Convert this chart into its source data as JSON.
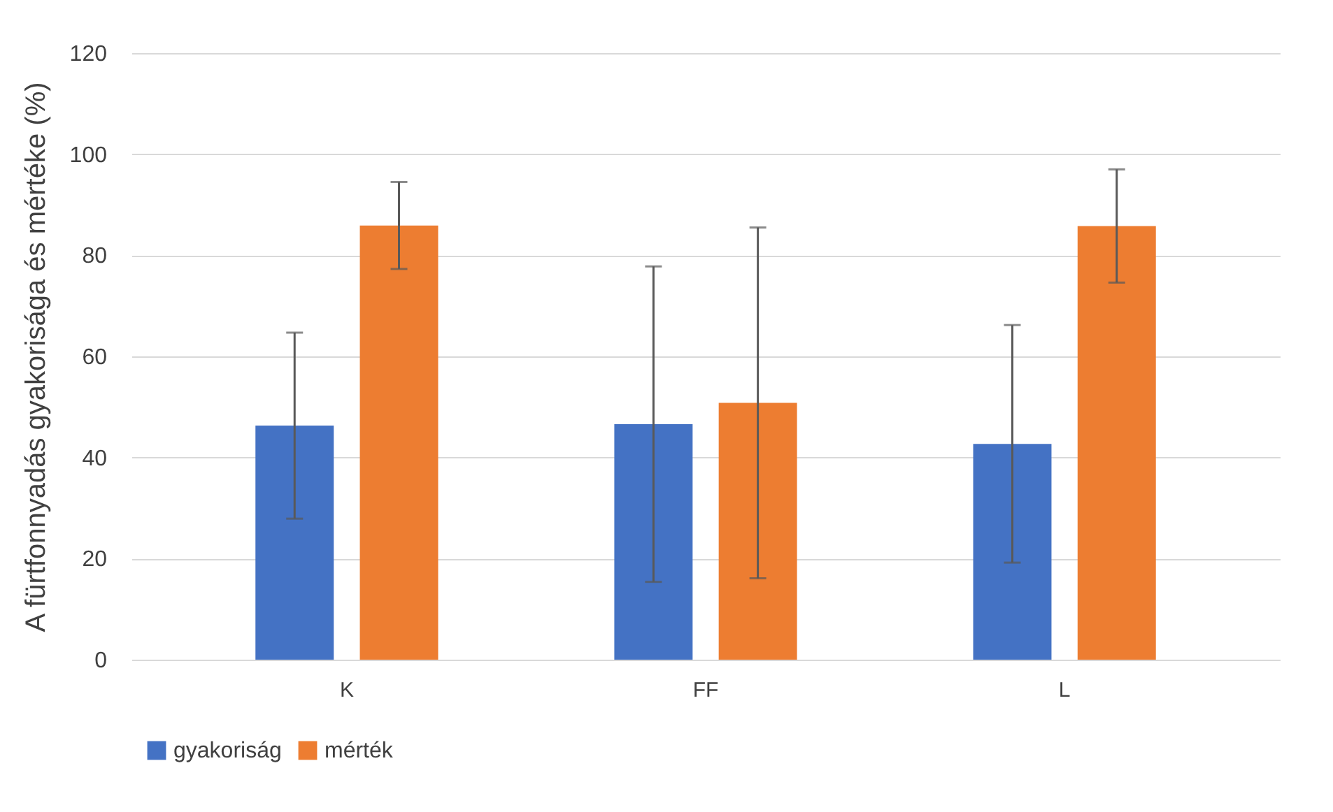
{
  "chart_data": {
    "type": "bar",
    "ylabel": "A fürtfonnyadás gyakorisága és mértéke (%)",
    "categories": [
      "K",
      "FF",
      "L"
    ],
    "series": [
      {
        "name": "gyakoriság",
        "color": "#4472c4",
        "values": [
          46.3,
          46.6,
          42.7
        ],
        "errors": [
          18.4,
          31.2,
          23.5
        ]
      },
      {
        "name": "mérték",
        "color": "#ed7d31",
        "values": [
          85.9,
          50.8,
          85.8
        ],
        "errors": [
          8.6,
          34.7,
          11.2
        ]
      }
    ],
    "ylim": [
      0,
      120
    ],
    "yticks": [
      0,
      20,
      40,
      60,
      80,
      100,
      120
    ],
    "grid": "y",
    "legend": "bottom"
  }
}
